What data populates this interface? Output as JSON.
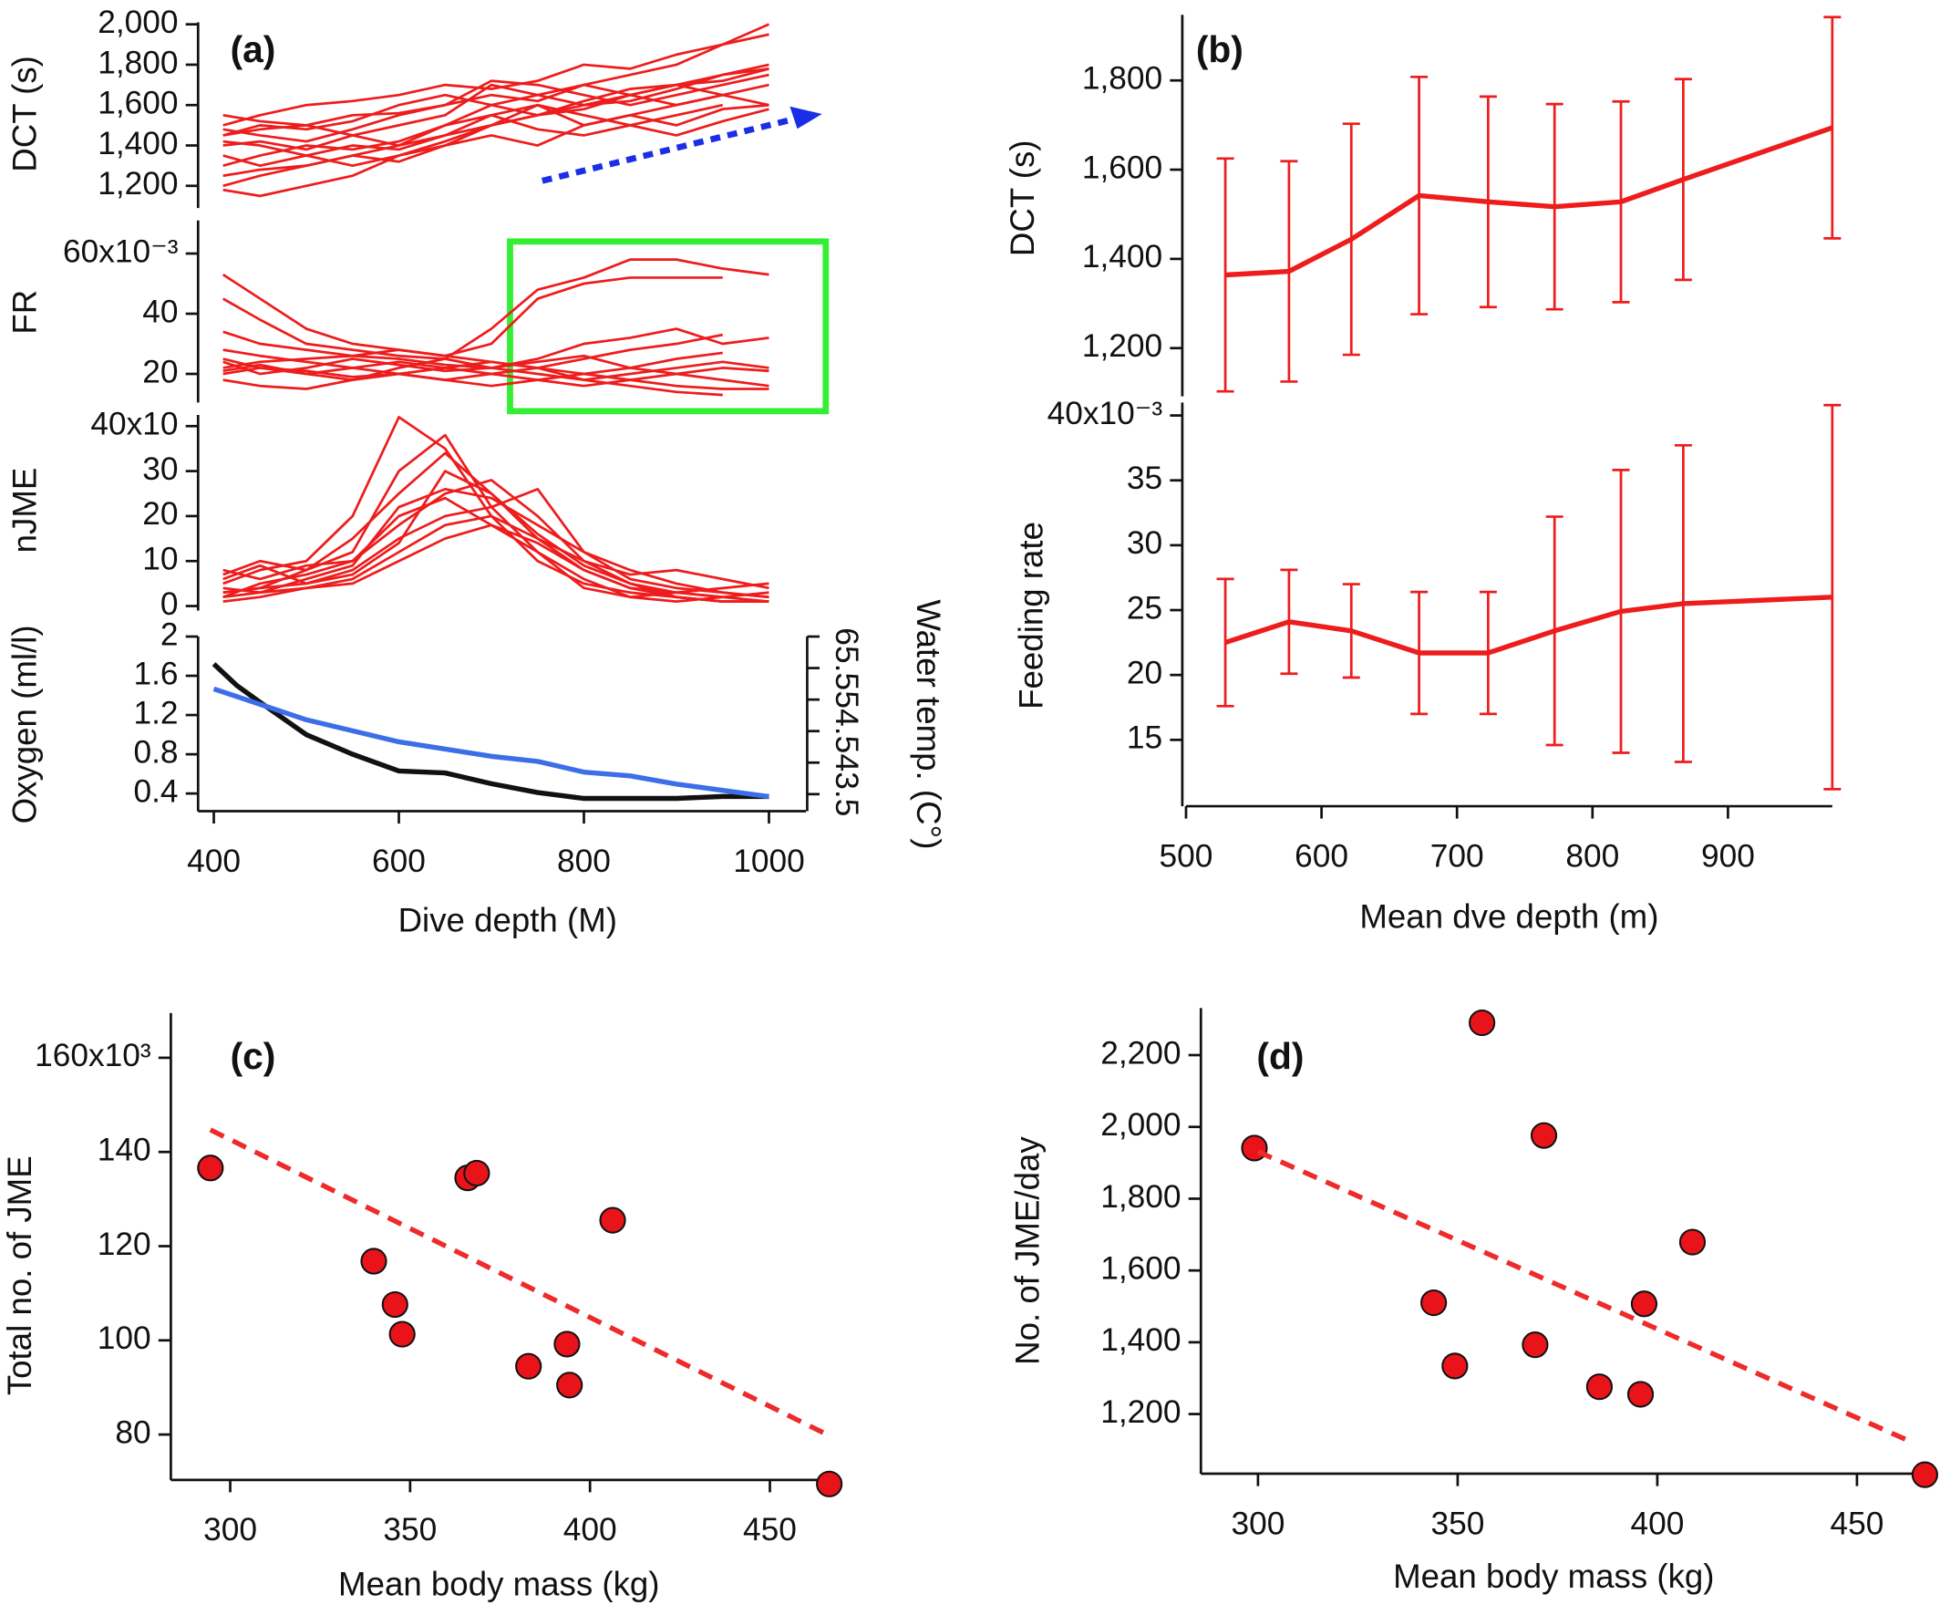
{
  "chart_data": [
    {
      "type": "line",
      "title": "(a)",
      "ylabel": "DCT (s)",
      "x": [
        410,
        450,
        500,
        550,
        600,
        650,
        700,
        750,
        800,
        850,
        900,
        950,
        1000
      ],
      "xlim": [
        383,
        1040
      ],
      "ylim": [
        1090,
        2010
      ],
      "yticks": [
        {
          "value": 1200,
          "label": "1,200"
        },
        {
          "value": 1400,
          "label": "1,400"
        },
        {
          "value": 1600,
          "label": "1,600"
        },
        {
          "value": 1800,
          "label": "1,800"
        },
        {
          "value": 2000,
          "label": "2,000"
        }
      ],
      "series": [
        {
          "color": "#ee1c1c",
          "values": [
            1450,
            1480,
            1500,
            1550,
            1560,
            1600,
            1650,
            1620,
            1700,
            1750,
            1800,
            1900,
            1950
          ]
        },
        {
          "color": "#ee1c1c",
          "values": [
            1200,
            1250,
            1300,
            1350,
            1400,
            1450,
            1500,
            1550,
            1600,
            1650,
            1700,
            1750,
            1780
          ]
        },
        {
          "color": "#ee1c1c",
          "values": [
            1400,
            1420,
            1380,
            1450,
            1500,
            1550,
            1700,
            1650,
            1600,
            1620,
            1680,
            1750,
            1800
          ]
        },
        {
          "color": "#ee1c1c",
          "values": [
            1350,
            1300,
            1350,
            1400,
            1380,
            1450,
            1550,
            1600,
            1500,
            1550,
            1600,
            1650,
            1700
          ]
        },
        {
          "color": "#ee1c1c",
          "values": [
            1500,
            1550,
            1600,
            1620,
            1650,
            1700,
            1680,
            1720,
            1800,
            1780,
            1850,
            1900,
            2000
          ]
        },
        {
          "color": "#ee1c1c",
          "values": [
            1180,
            1150,
            1200,
            1250,
            1350,
            1400,
            1450,
            1400,
            1500,
            1550,
            1500,
            1580,
            1600
          ]
        },
        {
          "color": "#ee1c1c",
          "values": [
            1450,
            1500,
            1480,
            1520,
            1600,
            1650,
            1600,
            1550,
            1580,
            1650,
            1700,
            1720,
            1780
          ]
        },
        {
          "color": "#ee1c1c",
          "values": [
            1550,
            1520,
            1500,
            1450,
            1400,
            1500,
            1600,
            1650,
            1700,
            1650,
            1600,
            1650,
            null
          ]
        },
        {
          "color": "#ee1c1c",
          "values": [
            1300,
            1350,
            1400,
            1380,
            1420,
            1500,
            1550,
            1480,
            1450,
            1500,
            1550,
            1600,
            null
          ]
        },
        {
          "color": "#ee1c1c",
          "values": [
            1420,
            1400,
            1350,
            1300,
            1350,
            1420,
            1500,
            1600,
            1550,
            1500,
            1450,
            1520,
            1580
          ]
        },
        {
          "color": "#ee1c1c",
          "values": [
            1250,
            1280,
            1300,
            1350,
            1320,
            1400,
            1500,
            1550,
            1620,
            1680,
            1700,
            1650,
            1600
          ]
        },
        {
          "color": "#ee1c1c",
          "values": [
            1480,
            1450,
            1420,
            1480,
            1550,
            1600,
            1720,
            1700,
            1650,
            1600,
            1650,
            1700,
            1750
          ]
        }
      ]
    },
    {
      "type": "line",
      "ylabel": "FR",
      "x": [
        410,
        450,
        500,
        550,
        600,
        650,
        700,
        750,
        800,
        850,
        900,
        950,
        1000
      ],
      "xlim": [
        383,
        1040
      ],
      "ylim": [
        10.5,
        71
      ],
      "yticks": [
        20,
        40,
        {
          "value": 60,
          "label": "60x10⁻³"
        }
      ],
      "series": [
        {
          "color": "#ee1c1c",
          "values": [
            53,
            45,
            35,
            30,
            28,
            26,
            30,
            45,
            50,
            52,
            52,
            52,
            null
          ]
        },
        {
          "color": "#ee1c1c",
          "values": [
            45,
            38,
            30,
            28,
            26,
            25,
            35,
            48,
            52,
            58,
            58,
            55,
            53
          ]
        },
        {
          "color": "#ee1c1c",
          "values": [
            34,
            30,
            28,
            26,
            25,
            23,
            22,
            25,
            30,
            32,
            35,
            30,
            32
          ]
        },
        {
          "color": "#ee1c1c",
          "values": [
            25,
            22,
            20,
            22,
            24,
            22,
            20,
            18,
            16,
            18,
            20,
            22,
            21
          ]
        },
        {
          "color": "#ee1c1c",
          "values": [
            20,
            22,
            21,
            19,
            20,
            22,
            24,
            22,
            20,
            18,
            16,
            15,
            15
          ]
        },
        {
          "color": "#ee1c1c",
          "values": [
            22,
            24,
            25,
            26,
            28,
            26,
            24,
            22,
            25,
            28,
            30,
            33,
            null
          ]
        },
        {
          "color": "#ee1c1c",
          "values": [
            18,
            16,
            15,
            18,
            20,
            18,
            16,
            18,
            20,
            22,
            20,
            18,
            16
          ]
        },
        {
          "color": "#ee1c1c",
          "values": [
            28,
            26,
            24,
            22,
            20,
            18,
            20,
            22,
            18,
            16,
            14,
            13,
            null
          ]
        },
        {
          "color": "#ee1c1c",
          "values": [
            24,
            20,
            22,
            25,
            23,
            21,
            22,
            24,
            26,
            22,
            25,
            27,
            null
          ]
        },
        {
          "color": "#ee1c1c",
          "values": [
            21,
            23,
            20,
            18,
            22,
            25,
            22,
            20,
            18,
            20,
            22,
            24,
            22
          ]
        }
      ]
    },
    {
      "type": "line",
      "ylabel": "nJME",
      "x": [
        410,
        450,
        500,
        550,
        600,
        650,
        700,
        750,
        800,
        850,
        900,
        950,
        1000
      ],
      "xlim": [
        383,
        1040
      ],
      "ylim": [
        -1,
        42.5
      ],
      "yticks": [
        0,
        10,
        20,
        30,
        {
          "value": 40,
          "label": "40x10"
        }
      ],
      "series": [
        {
          "color": "#ee1c1c",
          "values": [
            5,
            8,
            10,
            20,
            42,
            35,
            20,
            10,
            5,
            3,
            2,
            1,
            1
          ]
        },
        {
          "color": "#ee1c1c",
          "values": [
            3,
            4,
            8,
            15,
            25,
            34,
            25,
            15,
            8,
            4,
            3,
            2,
            1
          ]
        },
        {
          "color": "#ee1c1c",
          "values": [
            7,
            10,
            8,
            12,
            30,
            38,
            22,
            12,
            4,
            2,
            3,
            4,
            5
          ]
        },
        {
          "color": "#ee1c1c",
          "values": [
            2,
            5,
            7,
            10,
            18,
            25,
            28,
            20,
            10,
            5,
            2,
            1,
            1
          ]
        },
        {
          "color": "#ee1c1c",
          "values": [
            4,
            3,
            6,
            9,
            22,
            26,
            24,
            18,
            12,
            6,
            4,
            3,
            2
          ]
        },
        {
          "color": "#ee1c1c",
          "values": [
            6,
            9,
            5,
            8,
            15,
            20,
            22,
            26,
            12,
            8,
            5,
            3,
            2
          ]
        },
        {
          "color": "#ee1c1c",
          "values": [
            1,
            2,
            4,
            6,
            12,
            18,
            20,
            15,
            10,
            7,
            8,
            6,
            4
          ]
        },
        {
          "color": "#ee1c1c",
          "values": [
            8,
            6,
            9,
            10,
            20,
            24,
            18,
            12,
            6,
            2,
            1,
            2,
            3
          ]
        },
        {
          "color": "#ee1c1c",
          "values": [
            3,
            4,
            5,
            7,
            14,
            30,
            25,
            16,
            9,
            5,
            3,
            2,
            null
          ]
        },
        {
          "color": "#ee1c1c",
          "values": [
            2,
            3,
            4,
            5,
            10,
            15,
            18,
            14,
            8,
            4,
            2,
            1,
            1
          ]
        }
      ]
    },
    {
      "type": "line",
      "ylabel": "Oxygen (ml/l)",
      "y2label": "Water temp. (C°)",
      "xlabel": "Dive depth (M)",
      "xlim": [
        383,
        1040
      ],
      "ylim": [
        0.22,
        2.0
      ],
      "y2lim": [
        3.23,
        6.0
      ],
      "xticks": [
        400,
        600,
        800,
        1000
      ],
      "yticks": [
        0.4,
        0.8,
        1.2,
        1.6,
        2.0
      ],
      "y2ticks": [
        3.5,
        4.0,
        4.5,
        5.0,
        5.5,
        6.0
      ],
      "series": [
        {
          "color": "#111111",
          "x": [
            400,
            425,
            450,
            500,
            550,
            600,
            650,
            700,
            750,
            800,
            850,
            900,
            950,
            1000
          ],
          "values": [
            1.72,
            1.5,
            1.33,
            1.0,
            0.8,
            0.63,
            0.61,
            0.5,
            0.41,
            0.35,
            0.35,
            0.35,
            0.37,
            0.37
          ]
        },
        {
          "color": "#3d6ee8",
          "axis": "y2",
          "x": [
            400,
            500,
            600,
            700,
            750,
            800,
            850,
            900,
            1000
          ],
          "values": [
            5.17,
            4.68,
            4.33,
            4.1,
            4.02,
            3.85,
            3.79,
            3.66,
            3.46
          ]
        }
      ]
    },
    {
      "type": "errorbar",
      "title": "(b)",
      "ylabel": "DCT (s)",
      "xlim": [
        500,
        977
      ],
      "ylim": [
        1092,
        1947
      ],
      "yticks": [
        {
          "value": 1200,
          "label": "1,200"
        },
        {
          "value": 1400,
          "label": "1,400"
        },
        {
          "value": 1600,
          "label": "1,600"
        },
        {
          "value": 1800,
          "label": "1,800"
        }
      ],
      "series": [
        {
          "color": "#ee1c1c",
          "x": [
            529,
            576,
            622,
            672,
            723,
            772,
            821,
            867,
            977
          ],
          "values": [
            1364,
            1372,
            1444,
            1542,
            1528,
            1517,
            1528,
            1578,
            1694
          ],
          "errors": [
            261,
            247,
            259,
            266,
            236,
            230,
            225,
            225,
            248
          ]
        }
      ]
    },
    {
      "type": "errorbar",
      "ylabel": "Feeding rate",
      "xlabel": "Mean dve depth (m)",
      "xlim": [
        500,
        977
      ],
      "ylim": [
        11.7,
        41
      ],
      "xticks": [
        500,
        600,
        700,
        800,
        900
      ],
      "yticks": [
        15,
        20,
        25,
        30,
        35,
        {
          "value": 40,
          "label": "40x10⁻³"
        }
      ],
      "series": [
        {
          "color": "#ee1c1c",
          "x": [
            529,
            576,
            622,
            672,
            723,
            772,
            821,
            867,
            977
          ],
          "values": [
            22.5,
            24.1,
            23.4,
            21.7,
            21.7,
            23.4,
            24.9,
            25.5,
            26.0
          ],
          "errors": [
            4.9,
            4.0,
            3.6,
            4.7,
            4.7,
            8.8,
            10.9,
            12.2,
            14.8
          ]
        }
      ]
    },
    {
      "type": "scatter",
      "title": "(c)",
      "ylabel": "Total no. of JME",
      "xlabel": "Mean body mass (kg)",
      "xlim": [
        283.5,
        470
      ],
      "ylim": [
        68,
        169.5
      ],
      "xticks": [
        300,
        350,
        400,
        450
      ],
      "yticks": [
        80,
        100,
        120,
        140,
        {
          "value": 160,
          "label": "160x10³"
        }
      ],
      "series": [
        {
          "color": "#e8141a",
          "x": [
            294.5,
            339.9,
            345.8,
            347.8,
            366.0,
            368.5,
            382.9,
            393.6,
            394.3,
            406.3,
            466.5
          ],
          "values": [
            136.6,
            116.8,
            107.6,
            101.3,
            134.5,
            135.5,
            94.5,
            99.2,
            90.5,
            125.5,
            69.5
          ]
        },
        {
          "color": "#ee2a2a",
          "dash": true,
          "x": [
            294.5,
            467.2
          ],
          "values": [
            144.7,
            79.5
          ]
        }
      ]
    },
    {
      "type": "scatter",
      "title": "(d)",
      "ylabel": "No. of JME/day",
      "xlabel": "Mean body mass (kg)",
      "xlim": [
        285.7,
        468
      ],
      "ylim": [
        1020,
        2331
      ],
      "xticks": [
        300,
        350,
        400,
        450
      ],
      "yticks": [
        {
          "value": 1200,
          "label": "1,200"
        },
        {
          "value": 1400,
          "label": "1,400"
        },
        {
          "value": 1600,
          "label": "1,600"
        },
        {
          "value": 1800,
          "label": "1,800"
        },
        {
          "value": 2000,
          "label": "2,000"
        },
        {
          "value": 2200,
          "label": "2,200"
        }
      ],
      "series": [
        {
          "color": "#e8141a",
          "x": [
            299.1,
            356.1,
            371.6,
            344.0,
            349.3,
            369.4,
            385.5,
            396.7,
            395.8,
            408.8,
            467.0
          ],
          "values": [
            1941,
            2290,
            1976,
            1510,
            1334,
            1393,
            1276,
            1507,
            1255,
            1679,
            1031
          ]
        },
        {
          "color": "#ee2a2a",
          "dash": true,
          "x": [
            300,
            463.9
          ],
          "values": [
            1931,
            1121
          ]
        }
      ]
    }
  ]
}
